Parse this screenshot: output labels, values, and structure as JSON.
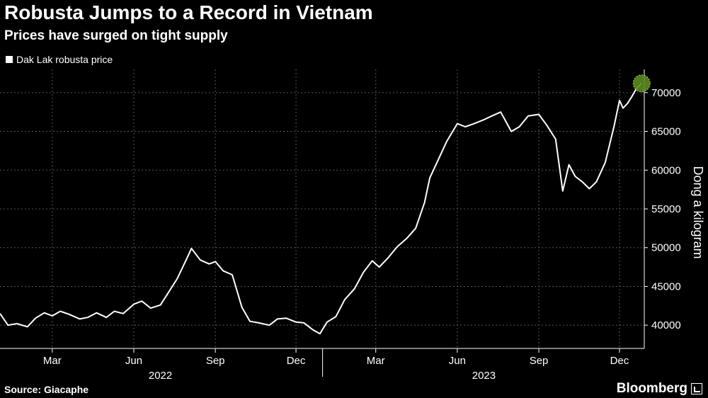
{
  "title": "Robusta Jumps to a Record in Vietnam",
  "subtitle": "Prices have surged on tight supply",
  "source": "Source: Giacaphe",
  "brand": "Bloomberg",
  "colors": {
    "background": "#000000",
    "line": "#ffffff",
    "grid": "#555555",
    "highlight": "#5c8a1e"
  },
  "chart_data": {
    "type": "line",
    "title": "Robusta Jumps to a Record in Vietnam",
    "subtitle": "Prices have surged on tight supply",
    "ylabel": "Dong a kilogram",
    "xlabel": "",
    "ylim": [
      37000,
      73000
    ],
    "xlim": [
      "2022-01-01",
      "2023-12-29"
    ],
    "grid": true,
    "legend_position": "top-left",
    "y_ticks": [
      40000,
      45000,
      50000,
      55000,
      60000,
      65000,
      70000
    ],
    "x_ticks": [
      {
        "date": "2022-03-01",
        "label": "Mar"
      },
      {
        "date": "2022-06-01",
        "label": "Jun"
      },
      {
        "date": "2022-09-01",
        "label": "Sep"
      },
      {
        "date": "2022-12-01",
        "label": "Dec"
      },
      {
        "date": "2023-03-01",
        "label": "Mar"
      },
      {
        "date": "2023-06-01",
        "label": "Jun"
      },
      {
        "date": "2023-09-01",
        "label": "Sep"
      },
      {
        "date": "2023-12-01",
        "label": "Dec"
      }
    ],
    "year_labels": [
      {
        "date": "2022-07-01",
        "label": "2022"
      },
      {
        "date": "2023-07-01",
        "label": "2023"
      }
    ],
    "series": [
      {
        "name": "Dak Lak robusta price",
        "x": [
          "2022-01-01",
          "2022-01-10",
          "2022-01-20",
          "2022-02-01",
          "2022-02-10",
          "2022-02-20",
          "2022-03-01",
          "2022-03-10",
          "2022-03-20",
          "2022-04-01",
          "2022-04-10",
          "2022-04-20",
          "2022-05-01",
          "2022-05-10",
          "2022-05-20",
          "2022-06-01",
          "2022-06-10",
          "2022-06-20",
          "2022-07-01",
          "2022-07-10",
          "2022-07-20",
          "2022-08-01",
          "2022-08-05",
          "2022-08-15",
          "2022-08-25",
          "2022-09-01",
          "2022-09-10",
          "2022-09-20",
          "2022-10-01",
          "2022-10-10",
          "2022-10-20",
          "2022-11-01",
          "2022-11-10",
          "2022-11-20",
          "2022-12-01",
          "2022-12-10",
          "2022-12-20",
          "2022-12-28",
          "2023-01-05",
          "2023-01-15",
          "2023-01-25",
          "2023-02-05",
          "2023-02-15",
          "2023-02-25",
          "2023-03-05",
          "2023-03-15",
          "2023-03-25",
          "2023-04-05",
          "2023-04-15",
          "2023-04-25",
          "2023-05-01",
          "2023-05-10",
          "2023-05-20",
          "2023-06-01",
          "2023-06-10",
          "2023-06-20",
          "2023-07-01",
          "2023-07-10",
          "2023-07-20",
          "2023-08-01",
          "2023-08-10",
          "2023-08-20",
          "2023-09-01",
          "2023-09-10",
          "2023-09-20",
          "2023-09-28",
          "2023-10-05",
          "2023-10-12",
          "2023-10-20",
          "2023-10-28",
          "2023-11-05",
          "2023-11-15",
          "2023-11-25",
          "2023-12-01",
          "2023-12-05",
          "2023-12-10",
          "2023-12-15",
          "2023-12-20",
          "2023-12-26"
        ],
        "values": [
          41500,
          40000,
          40200,
          39800,
          40900,
          41600,
          41200,
          41800,
          41400,
          40800,
          41000,
          41600,
          41000,
          41800,
          41500,
          42700,
          43100,
          42200,
          42600,
          44200,
          46000,
          48900,
          49900,
          48400,
          47900,
          48200,
          47000,
          46500,
          42300,
          40500,
          40300,
          40000,
          40800,
          40900,
          40400,
          40300,
          39400,
          38900,
          40400,
          41100,
          43300,
          44700,
          46800,
          48300,
          47500,
          48700,
          50100,
          51200,
          52500,
          55800,
          59000,
          61200,
          63700,
          66000,
          65600,
          66000,
          66500,
          67000,
          67500,
          65000,
          65600,
          67000,
          67200,
          65800,
          64000,
          57300,
          60700,
          59200,
          58500,
          57600,
          58500,
          61000,
          65700,
          69000,
          68000,
          68600,
          69500,
          70500,
          71200
        ]
      }
    ]
  }
}
